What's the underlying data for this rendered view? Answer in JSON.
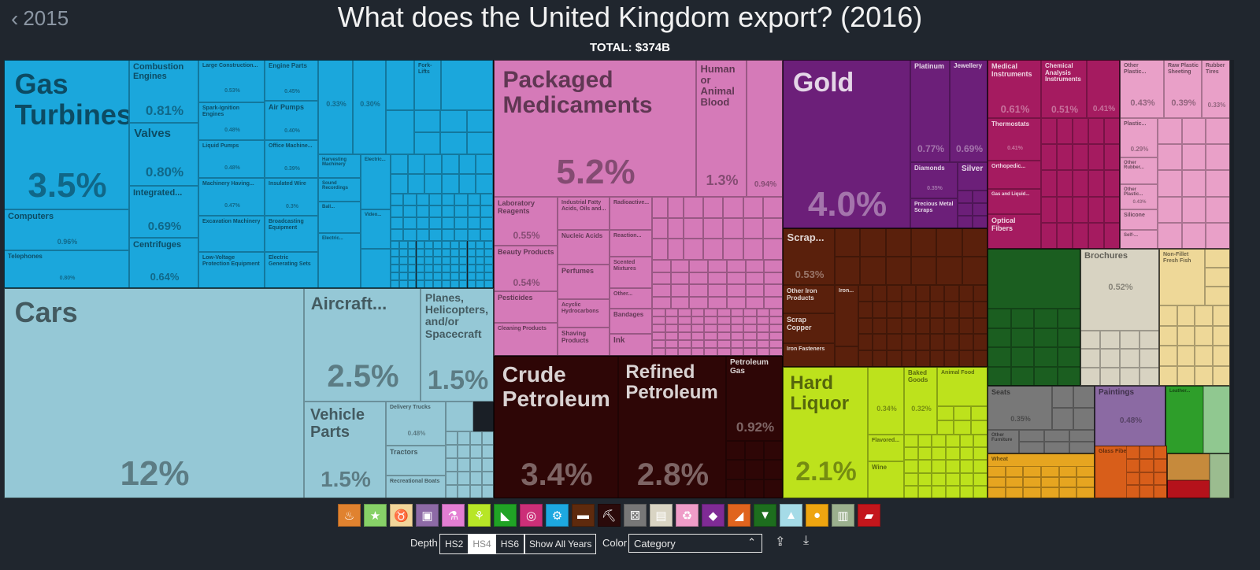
{
  "header": {
    "back_label": "2015",
    "title": "What does the United Kingdom export? (2016)",
    "total": "TOTAL: $374B"
  },
  "controls": {
    "depth_label": "Depth",
    "depth_options": [
      "HS2",
      "HS4",
      "HS6"
    ],
    "depth_selected": "HS4",
    "show_all_years": "Show All Years",
    "color_label": "Color",
    "color_value": "Category"
  },
  "category_icons": [
    {
      "icon": "fire-icon",
      "color": "#e0822f"
    },
    {
      "icon": "star-icon",
      "color": "#87d168"
    },
    {
      "icon": "cow-icon",
      "color": "#f2d59a"
    },
    {
      "icon": "frame-icon",
      "color": "#8d6aa6"
    },
    {
      "icon": "flask-icon",
      "color": "#e37ed3"
    },
    {
      "icon": "wheat-icon",
      "color": "#b7e627"
    },
    {
      "icon": "shoe-icon",
      "color": "#20a325"
    },
    {
      "icon": "lifebuoy-icon",
      "color": "#cc2f78"
    },
    {
      "icon": "gears-icon",
      "color": "#1da8e0"
    },
    {
      "icon": "anvil-icon",
      "color": "#5e2a0d"
    },
    {
      "icon": "pickaxe-icon",
      "color": "#2a0a0a"
    },
    {
      "icon": "dice-icon",
      "color": "#777777"
    },
    {
      "icon": "paper-icon",
      "color": "#d9d4c3"
    },
    {
      "icon": "recycle-icon",
      "color": "#ef9cc8"
    },
    {
      "icon": "gem-icon",
      "color": "#7f2b95"
    },
    {
      "icon": "boot-icon",
      "color": "#e0641e"
    },
    {
      "icon": "shirt-icon",
      "color": "#1d6e1e"
    },
    {
      "icon": "road-icon",
      "color": "#a5dbe7"
    },
    {
      "icon": "fruit-icon",
      "color": "#eea510"
    },
    {
      "icon": "museum-icon",
      "color": "#9bb08e"
    },
    {
      "icon": "ticket-icon",
      "color": "#c4161c"
    }
  ],
  "chart_data": {
    "type": "treemap",
    "title": "What does the United Kingdom export? (2016)",
    "total": "$374B",
    "unit": "% of total exports",
    "items": [
      {
        "name": "Gas Turbines",
        "share": 3.5,
        "label": "3.5%",
        "color": "#1ba7dc"
      },
      {
        "name": "Combustion Engines",
        "share": 0.81,
        "label": "0.81%",
        "color": "#1ba7dc"
      },
      {
        "name": "Valves",
        "share": 0.8,
        "label": "0.80%",
        "color": "#1ba7dc"
      },
      {
        "name": "Integrated...",
        "share": 0.69,
        "label": "0.69%",
        "color": "#1ba7dc"
      },
      {
        "name": "Centrifuges",
        "share": 0.64,
        "label": "0.64%",
        "color": "#1ba7dc"
      },
      {
        "name": "Computers",
        "share": 0.96,
        "label": "0.96%",
        "color": "#1ba7dc"
      },
      {
        "name": "Telephones",
        "share": 0.8,
        "label": "0.80%",
        "color": "#1ba7dc"
      },
      {
        "name": "Large Construction...",
        "share": 0.53,
        "label": "0.53%",
        "color": "#1ba7dc"
      },
      {
        "name": "Spark-Ignition Engines",
        "share": 0.48,
        "label": "0.48%",
        "color": "#1ba7dc"
      },
      {
        "name": "Liquid Pumps",
        "share": 0.48,
        "label": "0.48%",
        "color": "#1ba7dc"
      },
      {
        "name": "Machinery Having...",
        "share": 0.47,
        "label": "0.47%",
        "color": "#1ba7dc"
      },
      {
        "name": "Excavation Machinery",
        "share": 0.4,
        "label": "",
        "color": "#1ba7dc"
      },
      {
        "name": "Low-Voltage Protection Equipment",
        "share": 0.4,
        "label": "",
        "color": "#1ba7dc"
      },
      {
        "name": "Engine Parts",
        "share": 0.45,
        "label": "0.45%",
        "color": "#1ba7dc"
      },
      {
        "name": "Air Pumps",
        "share": 0.4,
        "label": "0.40%",
        "color": "#1ba7dc"
      },
      {
        "name": "Office Machine...",
        "share": 0.39,
        "label": "0.39%",
        "color": "#1ba7dc"
      },
      {
        "name": "Insulated Wire",
        "share": 0.3,
        "label": "0.3%",
        "color": "#1ba7dc"
      },
      {
        "name": "Broadcasting Equipment",
        "share": 0.3,
        "label": "",
        "color": "#1ba7dc"
      },
      {
        "name": "Electric Generating Sets",
        "share": 0.3,
        "label": "",
        "color": "#1ba7dc"
      },
      {
        "name": "Fork-Lifts",
        "share": 0.3,
        "label": "",
        "color": "#1ba7dc"
      },
      {
        "name": "Harvesting Machinery",
        "share": 0.2,
        "label": "",
        "color": "#1ba7dc"
      },
      {
        "name": "Sound Recordings",
        "share": 0.2,
        "label": "",
        "color": "#1ba7dc"
      },
      {
        "name": "Ball...",
        "share": 0.2,
        "label": "",
        "color": "#1ba7dc"
      },
      {
        "name": "Electric...",
        "share": 0.2,
        "label": "",
        "color": "#1ba7dc"
      },
      {
        "name": "Electric...",
        "share": 0.2,
        "label": "",
        "color": "#1ba7dc"
      },
      {
        "name": "Video...",
        "share": 0.2,
        "label": "",
        "color": "#1ba7dc"
      },
      {
        "name": "",
        "share": 0.33,
        "label": "0.33%",
        "color": "#1ba7dc"
      },
      {
        "name": "",
        "share": 0.3,
        "label": "0.30%",
        "color": "#1ba7dc"
      },
      {
        "name": "Cars",
        "share": 12,
        "label": "12%",
        "color": "#95c8d6"
      },
      {
        "name": "Aircraft...",
        "share": 2.5,
        "label": "2.5%",
        "color": "#95c8d6"
      },
      {
        "name": "Planes, Helicopters, and/or Spacecraft",
        "share": 1.5,
        "label": "1.5%",
        "color": "#95c8d6"
      },
      {
        "name": "Vehicle Parts",
        "share": 1.5,
        "label": "1.5%",
        "color": "#95c8d6"
      },
      {
        "name": "Delivery Trucks",
        "share": 0.48,
        "label": "0.48%",
        "color": "#95c8d6"
      },
      {
        "name": "Tractors",
        "share": 0.3,
        "label": "",
        "color": "#95c8d6"
      },
      {
        "name": "Recreational Boats",
        "share": 0.2,
        "label": "",
        "color": "#95c8d6"
      },
      {
        "name": "Packaged Medicaments",
        "share": 5.2,
        "label": "5.2%",
        "color": "#d57ab8"
      },
      {
        "name": "Human or Animal Blood",
        "share": 1.3,
        "label": "1.3%",
        "color": "#d57ab8"
      },
      {
        "name": "",
        "share": 0.94,
        "label": "0.94%",
        "color": "#d57ab8"
      },
      {
        "name": "Laboratory Reagents",
        "share": 0.55,
        "label": "0.55%",
        "color": "#d57ab8"
      },
      {
        "name": "Beauty Products",
        "share": 0.54,
        "label": "0.54%",
        "color": "#d57ab8"
      },
      {
        "name": "Pesticides",
        "share": 0.3,
        "label": "",
        "color": "#d57ab8"
      },
      {
        "name": "Cleaning Products",
        "share": 0.2,
        "label": "",
        "color": "#d57ab8"
      },
      {
        "name": "Industrial Fatty Acids, Oils and...",
        "share": 0.3,
        "label": "",
        "color": "#d57ab8"
      },
      {
        "name": "Nucleic Acids",
        "share": 0.3,
        "label": "",
        "color": "#d57ab8"
      },
      {
        "name": "Perfumes",
        "share": 0.3,
        "label": "",
        "color": "#d57ab8"
      },
      {
        "name": "Acyclic Hydrocarbons",
        "share": 0.2,
        "label": "",
        "color": "#d57ab8"
      },
      {
        "name": "Shaving Products",
        "share": 0.2,
        "label": "",
        "color": "#d57ab8"
      },
      {
        "name": "Radioactive...",
        "share": 0.2,
        "label": "",
        "color": "#d57ab8"
      },
      {
        "name": "Reaction...",
        "share": 0.2,
        "label": "",
        "color": "#d57ab8"
      },
      {
        "name": "Scented Mixtures",
        "share": 0.2,
        "label": "",
        "color": "#d57ab8"
      },
      {
        "name": "Other...",
        "share": 0.2,
        "label": "",
        "color": "#d57ab8"
      },
      {
        "name": "Bandages",
        "share": 0.2,
        "label": "",
        "color": "#d57ab8"
      },
      {
        "name": "Ink",
        "share": 0.2,
        "label": "",
        "color": "#d57ab8"
      },
      {
        "name": "Crude Petroleum",
        "share": 3.4,
        "label": "3.4%",
        "color": "#2e0606"
      },
      {
        "name": "Refined Petroleum",
        "share": 2.8,
        "label": "2.8%",
        "color": "#2e0606"
      },
      {
        "name": "Petroleum Gas",
        "share": 0.92,
        "label": "0.92%",
        "color": "#2e0606"
      },
      {
        "name": "Gold",
        "share": 4.0,
        "label": "4.0%",
        "color": "#6c1f79"
      },
      {
        "name": "Platinum",
        "share": 0.77,
        "label": "0.77%",
        "color": "#6c1f79"
      },
      {
        "name": "Jewellery",
        "share": 0.69,
        "label": "0.69%",
        "color": "#6c1f79"
      },
      {
        "name": "Diamonds",
        "share": 0.35,
        "label": "0.35%",
        "color": "#6c1f79"
      },
      {
        "name": "Silver",
        "share": 0.3,
        "label": "",
        "color": "#6c1f79"
      },
      {
        "name": "Precious Metal Scraps",
        "share": 0.2,
        "label": "",
        "color": "#6c1f79"
      },
      {
        "name": "Scrap...",
        "share": 0.53,
        "label": "0.53%",
        "color": "#5a200c"
      },
      {
        "name": "Other Iron Products",
        "share": 0.3,
        "label": "",
        "color": "#5a200c"
      },
      {
        "name": "Scrap Copper",
        "share": 0.3,
        "label": "",
        "color": "#5a200c"
      },
      {
        "name": "Iron Fasteners",
        "share": 0.2,
        "label": "",
        "color": "#5a200c"
      },
      {
        "name": "Iron...",
        "share": 0.2,
        "label": "",
        "color": "#5a200c"
      },
      {
        "name": "Hard Liquor",
        "share": 2.1,
        "label": "2.1%",
        "color": "#bde21c"
      },
      {
        "name": "Baked Goods",
        "share": 0.32,
        "label": "0.32%",
        "color": "#bde21c"
      },
      {
        "name": "Animal Food",
        "share": 0.3,
        "label": "",
        "color": "#bde21c"
      },
      {
        "name": "",
        "share": 0.34,
        "label": "0.34%",
        "color": "#bde21c"
      },
      {
        "name": "Flavored...",
        "share": 0.2,
        "label": "",
        "color": "#bde21c"
      },
      {
        "name": "Wine",
        "share": 0.2,
        "label": "",
        "color": "#bde21c"
      },
      {
        "name": "Medical Instruments",
        "share": 0.61,
        "label": "0.61%",
        "color": "#a51b60"
      },
      {
        "name": "Chemical Analysis Instruments",
        "share": 0.51,
        "label": "0.51%",
        "color": "#a51b60"
      },
      {
        "name": "",
        "share": 0.41,
        "label": "0.41%",
        "color": "#a51b60"
      },
      {
        "name": "Thermostats",
        "share": 0.41,
        "label": "0.41%",
        "color": "#a51b60"
      },
      {
        "name": "Orthopedic...",
        "share": 0.2,
        "label": "",
        "color": "#a51b60"
      },
      {
        "name": "Gas and Liquid...",
        "share": 0.2,
        "label": "",
        "color": "#a51b60"
      },
      {
        "name": "Optical Fibers",
        "share": 0.3,
        "label": "",
        "color": "#a51b60"
      },
      {
        "name": "Other Plastic...",
        "share": 0.43,
        "label": "0.43%",
        "color": "#e9a0c8"
      },
      {
        "name": "Raw Plastic Sheeting",
        "share": 0.39,
        "label": "0.39%",
        "color": "#e9a0c8"
      },
      {
        "name": "Rubber Tires",
        "share": 0.33,
        "label": "0.33%",
        "color": "#e9a0c8"
      },
      {
        "name": "Plastic...",
        "share": 0.29,
        "label": "0.29%",
        "color": "#e9a0c8"
      },
      {
        "name": "Other Rubber...",
        "share": 0.2,
        "label": "",
        "color": "#e9a0c8"
      },
      {
        "name": "Other Plastic...",
        "share": 0.2,
        "label": "",
        "color": "#e9a0c8"
      },
      {
        "name": "Silicone",
        "share": 0.2,
        "label": "",
        "color": "#e9a0c8"
      },
      {
        "name": "Self-...",
        "share": 0.2,
        "label": "",
        "color": "#e9a0c8"
      },
      {
        "name": "",
        "share": 1.6,
        "label": "",
        "color": "#1b5e20"
      },
      {
        "name": "Brochures",
        "share": 0.52,
        "label": "0.52%",
        "color": "#d8d3c2"
      },
      {
        "name": "Non-Fillet Fresh Fish",
        "share": 0.4,
        "label": "",
        "color": "#eed898"
      },
      {
        "name": "Seats",
        "share": 0.35,
        "label": "0.35%",
        "color": "#787878"
      },
      {
        "name": "Other Furniture",
        "share": 0.2,
        "label": "",
        "color": "#787878"
      },
      {
        "name": "Paintings",
        "share": 0.48,
        "label": "0.48%",
        "color": "#8b6aa3"
      },
      {
        "name": "Leather...",
        "share": 0.2,
        "label": "",
        "color": "#2e9e2a"
      },
      {
        "name": "",
        "share": 0.2,
        "label": "",
        "color": "#90c890"
      },
      {
        "name": "Wheat",
        "share": 0.3,
        "label": "",
        "color": "#e6a520"
      },
      {
        "name": "Glass Fibers",
        "share": 0.3,
        "label": "",
        "color": "#d85e1a"
      },
      {
        "name": "",
        "share": 0.2,
        "label": "",
        "color": "#c68a3c"
      },
      {
        "name": "",
        "share": 0.2,
        "label": "",
        "color": "#b5121b"
      },
      {
        "name": "",
        "share": 0.2,
        "label": "",
        "color": "#9bbc8f"
      }
    ]
  }
}
